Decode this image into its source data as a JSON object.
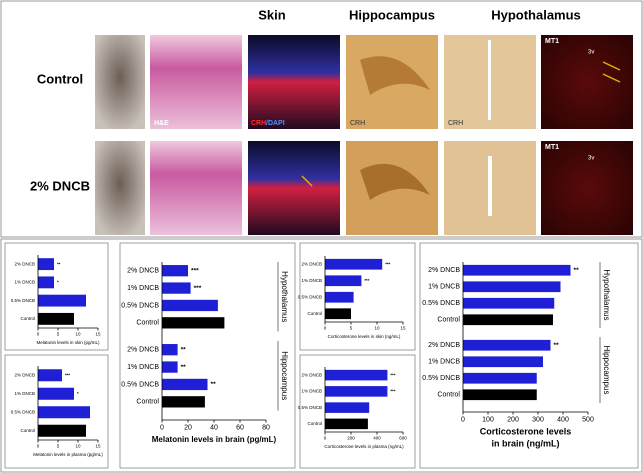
{
  "header": {
    "column_headers": [
      "Skin",
      "Hippocampus",
      "Hypothalamus"
    ],
    "row_labels": [
      "Control",
      "2% DNCB"
    ],
    "image_labels": [
      "H&E",
      "CRH",
      "/DAPI",
      "CRH",
      "CRH",
      "MT1",
      "3v",
      "MT1",
      "3v"
    ]
  },
  "chart_data": [
    {
      "type": "bar",
      "orientation": "horizontal",
      "title": "Melatonin levels in skin (pg/mL)",
      "categories": [
        "2% DNCB",
        "1% DNCB",
        "0.5% DNCB",
        "Control"
      ],
      "colors": [
        "#1f1fd6",
        "#1f1fd6",
        "#1f1fd6",
        "#000000"
      ],
      "values": [
        4,
        4,
        12,
        9
      ],
      "annotations": [
        "**",
        "*",
        null,
        null
      ],
      "xlim": [
        0,
        15
      ],
      "xticks": [
        0,
        5,
        10,
        15
      ]
    },
    {
      "type": "bar",
      "orientation": "horizontal",
      "title": "Melatonin levels in plasma (pg/mL)",
      "categories": [
        "2% DNCB",
        "1% DNCB",
        "0.5% DNCB",
        "Control"
      ],
      "colors": [
        "#1f1fd6",
        "#1f1fd6",
        "#1f1fd6",
        "#000000"
      ],
      "values": [
        6,
        9,
        13,
        12
      ],
      "annotations": [
        "***",
        "*",
        null,
        null
      ],
      "xlim": [
        0,
        15
      ],
      "xticks": [
        0,
        5,
        10,
        15
      ]
    },
    {
      "type": "grouped-bar",
      "orientation": "horizontal",
      "title": "Melatonin levels in brain (pg/mL)",
      "categories": [
        "2% DNCB",
        "1% DNCB",
        "0.5% DNCB",
        "Control"
      ],
      "colors": [
        "#1f1fd6",
        "#1f1fd6",
        "#1f1fd6",
        "#000000"
      ],
      "groups": [
        {
          "name": "Hypothalamus",
          "values": [
            20,
            22,
            43,
            48
          ],
          "annotations": [
            "***",
            "***",
            null,
            null
          ]
        },
        {
          "name": "Hippocampus",
          "values": [
            12,
            12,
            35,
            33
          ],
          "annotations": [
            "**",
            "**",
            "**",
            null
          ]
        }
      ],
      "xlim": [
        0,
        80
      ],
      "xticks": [
        0,
        20,
        40,
        60,
        80
      ]
    },
    {
      "type": "bar",
      "orientation": "horizontal",
      "title": "Corticosterone levels in skin (ng/mL)",
      "categories": [
        "2% DNCB",
        "1% DNCB",
        "0.5% DNCB",
        "Control"
      ],
      "colors": [
        "#1f1fd6",
        "#1f1fd6",
        "#1f1fd6",
        "#000000"
      ],
      "values": [
        11,
        7,
        5.5,
        5
      ],
      "annotations": [
        "***",
        "***",
        null,
        null
      ],
      "xlim": [
        0,
        15
      ],
      "xticks": [
        0,
        5,
        10,
        15
      ]
    },
    {
      "type": "bar",
      "orientation": "horizontal",
      "title": "Corticosterone levels in plasma (ng/mL)",
      "categories": [
        "2% DNCB",
        "1% DNCB",
        "0.5% DNCB",
        "Control"
      ],
      "colors": [
        "#1f1fd6",
        "#1f1fd6",
        "#1f1fd6",
        "#000000"
      ],
      "values": [
        480,
        480,
        340,
        330
      ],
      "annotations": [
        "***",
        "***",
        null,
        null
      ],
      "xlim": [
        0,
        600
      ],
      "xticks": [
        0,
        200,
        400,
        600
      ]
    },
    {
      "type": "grouped-bar",
      "orientation": "horizontal",
      "title": [
        "Corticosterone levels",
        "in brain (ng/mL)"
      ],
      "categories": [
        "2% DNCB",
        "1% DNCB",
        "0.5% DNCB",
        "Control"
      ],
      "colors": [
        "#1f1fd6",
        "#1f1fd6",
        "#1f1fd6",
        "#000000"
      ],
      "groups": [
        {
          "name": "Hypothalamus",
          "values": [
            430,
            390,
            365,
            360
          ],
          "annotations": [
            "**",
            null,
            null,
            null
          ]
        },
        {
          "name": "Hippocampus",
          "values": [
            350,
            320,
            295,
            295
          ],
          "annotations": [
            "**",
            null,
            null,
            null
          ]
        }
      ],
      "xlim": [
        0,
        500
      ],
      "xticks": [
        0,
        100,
        200,
        300,
        400,
        500
      ]
    }
  ]
}
